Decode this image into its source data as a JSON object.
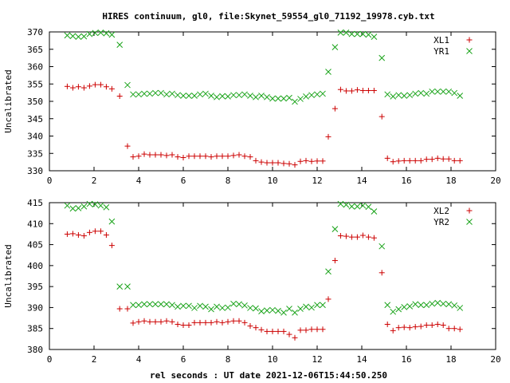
{
  "title": "HIRES continuum, gl0, file:Skynet_59554_gl0_71192_19978.cyb.txt",
  "xlabel": "rel seconds : UT date 2021-12-06T15:44:50.250",
  "colors": {
    "red": "#cc0000",
    "green": "#1aa31a"
  },
  "chart_data": [
    {
      "type": "scatter",
      "ylabel": "Uncalibrated",
      "xlim": [
        0,
        20
      ],
      "ylim": [
        330,
        370
      ],
      "xticks": [
        0,
        2,
        4,
        6,
        8,
        10,
        12,
        14,
        16,
        18,
        20
      ],
      "yticks": [
        330,
        335,
        340,
        345,
        350,
        355,
        360,
        365,
        370
      ],
      "legend": "top-right",
      "grid": false,
      "x": [
        0.8,
        1.05,
        1.3,
        1.55,
        1.8,
        2.05,
        2.3,
        2.55,
        2.8,
        3.15,
        3.5,
        3.75,
        4.0,
        4.25,
        4.5,
        4.75,
        5.0,
        5.25,
        5.5,
        5.75,
        6.0,
        6.25,
        6.5,
        6.75,
        7.0,
        7.25,
        7.5,
        7.75,
        8.0,
        8.25,
        8.5,
        8.75,
        9.0,
        9.25,
        9.5,
        9.75,
        10.0,
        10.25,
        10.5,
        10.75,
        11.0,
        11.25,
        11.5,
        11.75,
        12.0,
        12.25,
        12.5,
        12.8,
        13.05,
        13.3,
        13.55,
        13.8,
        14.05,
        14.3,
        14.55,
        14.9,
        15.15,
        15.4,
        15.65,
        15.9,
        16.15,
        16.4,
        16.65,
        16.9,
        17.15,
        17.4,
        17.65,
        17.9,
        18.15,
        18.4
      ],
      "series": [
        {
          "name": "XL1",
          "marker": "plus",
          "color": "#cc0000",
          "values": [
            354.3,
            353.9,
            354.2,
            353.9,
            354.4,
            354.8,
            354.8,
            354.2,
            353.6,
            351.5,
            337.1,
            334.0,
            334.2,
            334.8,
            334.6,
            334.6,
            334.6,
            334.4,
            334.6,
            334.0,
            333.8,
            334.2,
            334.2,
            334.2,
            334.2,
            334.0,
            334.2,
            334.2,
            334.2,
            334.4,
            334.6,
            334.2,
            334.0,
            332.9,
            332.5,
            332.3,
            332.3,
            332.3,
            332.1,
            332.0,
            331.7,
            332.7,
            332.9,
            332.7,
            332.8,
            332.8,
            339.8,
            347.9,
            353.4,
            353.0,
            353.0,
            353.3,
            353.1,
            353.1,
            353.1,
            345.6,
            333.6,
            332.6,
            332.8,
            332.9,
            332.9,
            332.9,
            332.9,
            333.3,
            333.3,
            333.6,
            333.4,
            333.4,
            332.9,
            332.9
          ]
        },
        {
          "name": "YR1",
          "marker": "cross",
          "color": "#1aa31a",
          "values": [
            369.0,
            368.8,
            368.6,
            368.7,
            369.4,
            369.7,
            369.8,
            369.6,
            369.2,
            366.3,
            354.7,
            352.0,
            352.0,
            352.2,
            352.2,
            352.4,
            352.4,
            352.0,
            352.2,
            351.8,
            351.6,
            351.6,
            351.6,
            352.0,
            352.2,
            351.6,
            351.2,
            351.5,
            351.4,
            351.8,
            351.8,
            352.0,
            351.6,
            351.2,
            351.6,
            351.2,
            350.8,
            350.8,
            350.8,
            351.0,
            349.9,
            350.7,
            351.4,
            351.8,
            352.0,
            352.2,
            358.5,
            365.6,
            369.8,
            369.8,
            369.4,
            369.4,
            369.4,
            369.2,
            368.6,
            362.5,
            352.0,
            351.4,
            351.8,
            351.6,
            351.8,
            352.2,
            352.4,
            352.2,
            352.8,
            352.8,
            352.8,
            352.8,
            352.4,
            351.6
          ]
        }
      ]
    },
    {
      "type": "scatter",
      "ylabel": "Uncalibrated",
      "xlim": [
        0,
        20
      ],
      "ylim": [
        380,
        415
      ],
      "xticks": [
        0,
        2,
        4,
        6,
        8,
        10,
        12,
        14,
        16,
        18,
        20
      ],
      "yticks": [
        380,
        385,
        390,
        395,
        400,
        405,
        410,
        415
      ],
      "legend": "top-right",
      "grid": false,
      "x": [
        0.8,
        1.05,
        1.3,
        1.55,
        1.8,
        2.05,
        2.3,
        2.55,
        2.8,
        3.15,
        3.5,
        3.75,
        4.0,
        4.25,
        4.5,
        4.75,
        5.0,
        5.25,
        5.5,
        5.75,
        6.0,
        6.25,
        6.5,
        6.75,
        7.0,
        7.25,
        7.5,
        7.75,
        8.0,
        8.25,
        8.5,
        8.75,
        9.0,
        9.25,
        9.5,
        9.75,
        10.0,
        10.25,
        10.5,
        10.75,
        11.0,
        11.25,
        11.5,
        11.75,
        12.0,
        12.25,
        12.5,
        12.8,
        13.05,
        13.3,
        13.55,
        13.8,
        14.05,
        14.3,
        14.55,
        14.9,
        15.15,
        15.4,
        15.65,
        15.9,
        16.15,
        16.4,
        16.65,
        16.9,
        17.15,
        17.4,
        17.65,
        17.9,
        18.15,
        18.4
      ],
      "series": [
        {
          "name": "XL2",
          "marker": "plus",
          "color": "#cc0000",
          "values": [
            407.5,
            407.6,
            407.3,
            407.1,
            407.9,
            408.2,
            408.2,
            407.3,
            404.8,
            389.7,
            389.7,
            386.3,
            386.6,
            386.8,
            386.6,
            386.6,
            386.6,
            386.8,
            386.6,
            386.0,
            385.8,
            385.8,
            386.4,
            386.4,
            386.4,
            386.4,
            386.6,
            386.4,
            386.6,
            386.8,
            386.8,
            386.4,
            385.6,
            385.2,
            384.7,
            384.3,
            384.3,
            384.3,
            384.3,
            383.6,
            382.8,
            384.6,
            384.6,
            384.8,
            384.8,
            384.8,
            392.0,
            401.2,
            407.1,
            407.0,
            406.8,
            406.8,
            407.2,
            406.8,
            406.6,
            398.3,
            386.0,
            384.5,
            385.2,
            385.3,
            385.2,
            385.4,
            385.5,
            385.8,
            385.8,
            386.0,
            385.8,
            385.0,
            385.0,
            384.8
          ]
        },
        {
          "name": "YR2",
          "marker": "cross",
          "color": "#1aa31a",
          "values": [
            414.3,
            413.6,
            413.7,
            414.1,
            414.7,
            414.6,
            414.3,
            413.9,
            410.5,
            395.0,
            395.0,
            390.6,
            390.6,
            390.8,
            390.8,
            390.8,
            390.8,
            390.8,
            390.6,
            390.2,
            390.4,
            390.4,
            389.9,
            390.4,
            390.2,
            389.6,
            390.2,
            389.9,
            390.0,
            390.9,
            390.8,
            390.5,
            389.9,
            389.8,
            389.1,
            389.3,
            389.4,
            389.2,
            388.8,
            389.7,
            388.8,
            389.7,
            390.2,
            390.0,
            390.6,
            390.6,
            398.6,
            408.7,
            414.7,
            414.5,
            414.1,
            414.1,
            414.3,
            414.0,
            412.9,
            404.6,
            390.6,
            389.0,
            389.6,
            390.1,
            390.3,
            390.8,
            390.6,
            390.6,
            390.9,
            391.1,
            390.9,
            390.8,
            390.5,
            389.9
          ]
        }
      ]
    }
  ]
}
